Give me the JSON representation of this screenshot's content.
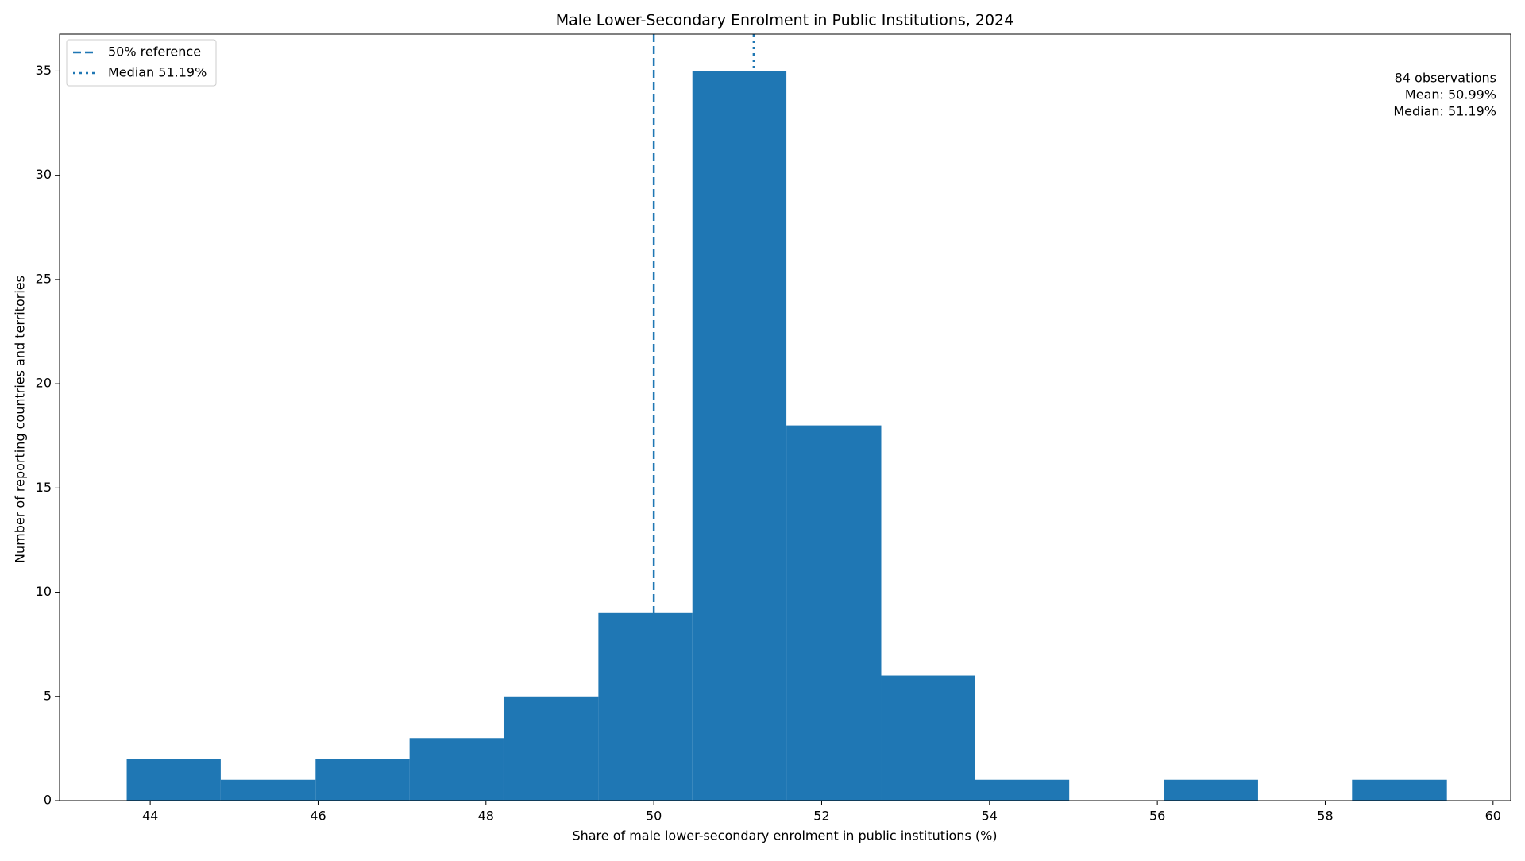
{
  "chart_data": {
    "type": "histogram",
    "title": "Male Lower-Secondary Enrolment in Public Institutions, 2024",
    "x_label": "Share of male lower-secondary enrolment in public institutions (%)",
    "y_label": "Number of reporting countries and territories",
    "bins": [
      43.72,
      44.84,
      45.97,
      47.09,
      48.21,
      49.34,
      50.46,
      51.58,
      52.71,
      53.83,
      54.95,
      56.08,
      57.2,
      58.32,
      59.45
    ],
    "counts": [
      2,
      1,
      2,
      3,
      5,
      9,
      35,
      18,
      6,
      1,
      0,
      1,
      0,
      1
    ],
    "color": "#1f77b4",
    "xlim": [
      42.92,
      60.21
    ],
    "xticks": [
      44,
      46,
      48,
      50,
      52,
      54,
      56,
      58,
      60
    ],
    "ylim": [
      0,
      36.77
    ],
    "yticks": [
      0,
      5,
      10,
      15,
      20,
      25,
      30,
      35
    ],
    "reference_lines": [
      {
        "name": "50% reference",
        "value": 50,
        "style": "dashed",
        "color": "#1f77b4"
      },
      {
        "name": "Median 51.19%",
        "value": 51.19,
        "style": "dotted",
        "color": "#1f77b4"
      }
    ],
    "legend": "upper left",
    "annotation": [
      "84 observations",
      "Mean: 50.99%",
      "Median: 51.19%"
    ]
  }
}
